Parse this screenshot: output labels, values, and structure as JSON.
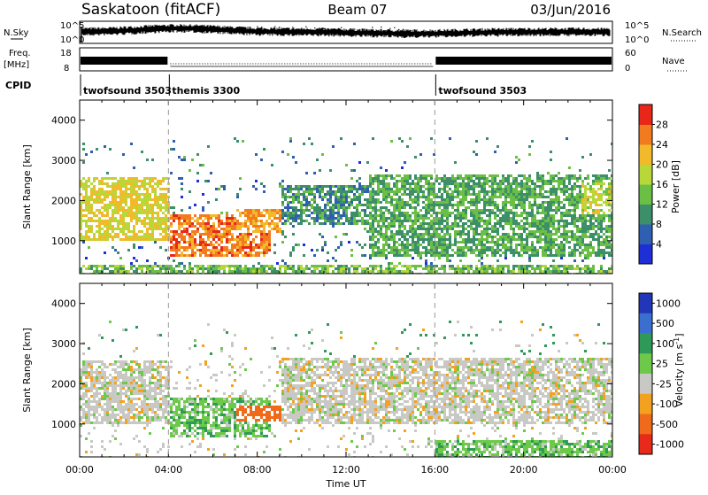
{
  "header": {
    "station": "Saskatoon (fitACF)",
    "beam": "Beam 07",
    "date": "03/Jun/2016"
  },
  "strips": {
    "nsky_label": "N.Sky",
    "nsky_ticks": [
      "10^5",
      "10^0"
    ],
    "nsearch_label": "N.Search",
    "freq_label": "Freq.",
    "freq_unit": "[MHz]",
    "freq_ticks": [
      "18",
      "8"
    ],
    "nave_label": "Nave",
    "nave_ticks": [
      "60",
      "0"
    ],
    "cpid_label": "CPID",
    "cpid_segments": [
      {
        "name": "twofsound 3503",
        "start_h": 0,
        "end_h": 4
      },
      {
        "name": "themis 3300",
        "start_h": 4,
        "end_h": 16
      },
      {
        "name": "twofsound 3503",
        "start_h": 16,
        "end_h": 24
      }
    ]
  },
  "chart_data": [
    {
      "type": "heatmap",
      "title": "",
      "xlabel": "Time UT",
      "ylabel": "Slant Range [km]",
      "xlim": [
        0,
        24
      ],
      "ylim": [
        180,
        4500
      ],
      "x_ticks": [
        "00:00",
        "04:00",
        "08:00",
        "12:00",
        "16:00",
        "20:00",
        "00:00"
      ],
      "y_ticks": [
        1000,
        2000,
        3000,
        4000
      ],
      "colorbar": {
        "label": "Power [dB]",
        "ticks": [
          "4",
          "8",
          "12",
          "16",
          "20",
          "24",
          "28"
        ],
        "colors": [
          "#1f2fd6",
          "#2f5fb0",
          "#3d8f6a",
          "#6cbf45",
          "#b8d83a",
          "#f2b92a",
          "#f27a1f",
          "#e8261a"
        ]
      },
      "regions": [
        {
          "x0": 0.0,
          "x1": 4.0,
          "y0": 1000,
          "y1": 2600,
          "value": 20
        },
        {
          "x0": 4.0,
          "x1": 8.5,
          "y0": 600,
          "y1": 1700,
          "value": 26
        },
        {
          "x0": 7.0,
          "x1": 9.0,
          "y0": 1200,
          "y1": 1800,
          "value": 24
        },
        {
          "x0": 9.0,
          "x1": 13.0,
          "y0": 1400,
          "y1": 2400,
          "value": 10
        },
        {
          "x0": 13.0,
          "x1": 24.0,
          "y0": 600,
          "y1": 2700,
          "value": 12
        },
        {
          "x0": 22.5,
          "x1": 24.0,
          "y0": 1700,
          "y1": 2500,
          "value": 18
        },
        {
          "x0": 0.0,
          "x1": 24.0,
          "y0": 180,
          "y1": 420,
          "value": 14
        }
      ]
    },
    {
      "type": "heatmap",
      "title": "",
      "xlabel": "Time UT",
      "ylabel": "Slant Range [km]",
      "xlim": [
        0,
        24
      ],
      "ylim": [
        180,
        4500
      ],
      "x_ticks": [
        "00:00",
        "04:00",
        "08:00",
        "12:00",
        "16:00",
        "20:00",
        "00:00"
      ],
      "y_ticks": [
        1000,
        2000,
        3000,
        4000
      ],
      "colorbar": {
        "label": "Velocity [m s^-1]",
        "ticks": [
          "1000",
          "500",
          "100",
          "25",
          "-25",
          "-100",
          "-500",
          "-1000"
        ],
        "colors": [
          "#2236b8",
          "#3b6fcf",
          "#2f9a58",
          "#6cc94a",
          "#c8c8c4",
          "#f3a21f",
          "#ef6a1a",
          "#e82a1a"
        ]
      },
      "regions": [
        {
          "x0": 0.0,
          "x1": 4.0,
          "y0": 1000,
          "y1": 2600,
          "value": 0
        },
        {
          "x0": 4.0,
          "x1": 8.5,
          "y0": 700,
          "y1": 1700,
          "value": 60
        },
        {
          "x0": 7.0,
          "x1": 11.0,
          "y0": 1100,
          "y1": 1500,
          "value": -300
        },
        {
          "x0": 9.0,
          "x1": 24.0,
          "y0": 1000,
          "y1": 2700,
          "value": 0
        },
        {
          "x0": 16.0,
          "x1": 24.0,
          "y0": 180,
          "y1": 600,
          "value": 60
        }
      ]
    }
  ]
}
